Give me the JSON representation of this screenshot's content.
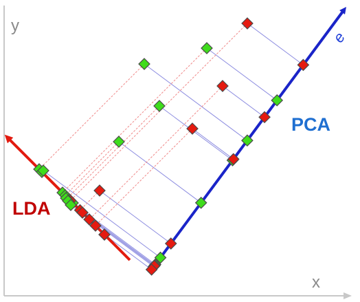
{
  "labels": {
    "y_axis": "y",
    "x_axis": "x",
    "lda": "LDA",
    "pca": "PCA",
    "pca_vector": "e"
  },
  "colors": {
    "axis": "#c8c8c8",
    "lda_line": "#e21b10",
    "pca_line": "#1a24c8",
    "class_green": "#3fdc1c",
    "class_red": "#e51a10",
    "pca_projection": "#8c8ce0",
    "lda_projection": "#f08a8a"
  },
  "points": [
    {
      "class": "green"
    },
    {
      "class": "green"
    },
    {
      "class": "green"
    },
    {
      "class": "green"
    },
    {
      "class": "green"
    },
    {
      "class": "green"
    },
    {
      "class": "green"
    },
    {
      "class": "green"
    },
    {
      "class": "red"
    },
    {
      "class": "red"
    },
    {
      "class": "red"
    },
    {
      "class": "red"
    },
    {
      "class": "red"
    },
    {
      "class": "red"
    }
  ]
}
